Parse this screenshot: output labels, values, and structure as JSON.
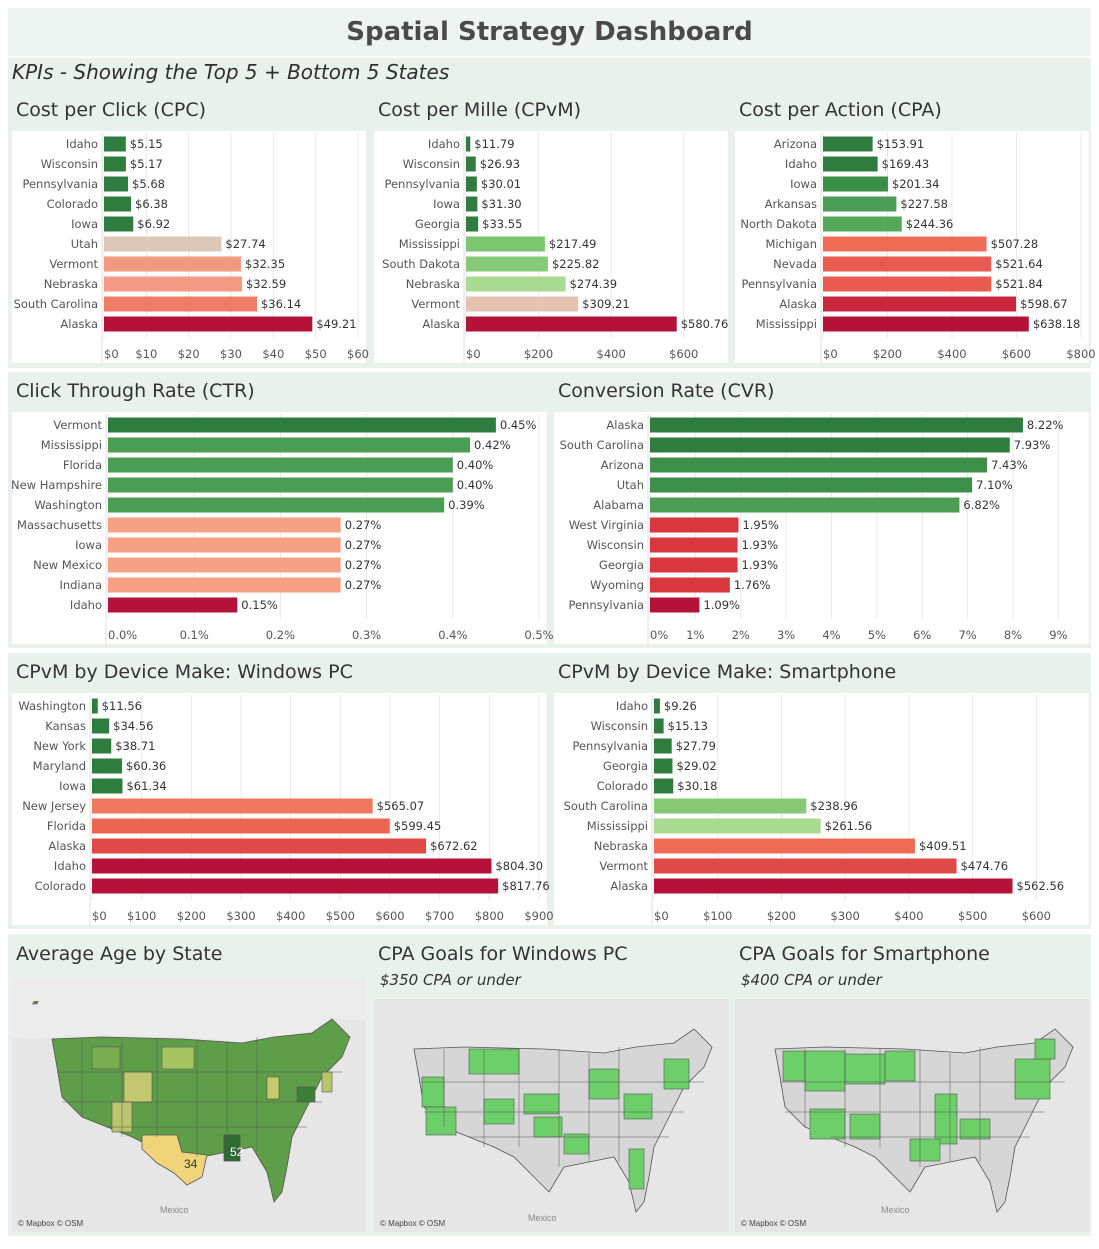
{
  "dashboard": {
    "title": "Spatial Strategy Dashboard",
    "kpi_subtitle": "KPIs - Showing the Top 5 + Bottom 5 States"
  },
  "colors": {
    "dark_green": "#2e7d3f",
    "mid_green": "#4a9d52",
    "light_green": "#7cc66e",
    "pale_green": "#a8da8f",
    "beige": "#e4cbb6",
    "salmon": "#f7a184",
    "coral": "#ee6b56",
    "red": "#d9363e",
    "crimson": "#b5123a",
    "map_green": "#6ccf6a",
    "map_grey": "#d8d8d8"
  },
  "chart_data": [
    {
      "id": "cpc",
      "type": "bar",
      "title": "Cost per Click (CPC)",
      "categories": [
        "Idaho",
        "Wisconsin",
        "Pennsylvania",
        "Colorado",
        "Iowa",
        "Utah",
        "Vermont",
        "Nebraska",
        "South Carolina",
        "Alaska"
      ],
      "values": [
        5.15,
        5.17,
        5.68,
        6.38,
        6.92,
        27.74,
        32.35,
        32.59,
        36.14,
        49.21
      ],
      "labels": [
        "$5.15",
        "$5.17",
        "$5.68",
        "$6.38",
        "$6.92",
        "$27.74",
        "$32.35",
        "$32.59",
        "$36.14",
        "$49.21"
      ],
      "bar_colors": [
        "#2e7d3f",
        "#2e7d3f",
        "#2e7d3f",
        "#2e7d3f",
        "#2e7d3f",
        "#dcc8b6",
        "#f59a82",
        "#f59a82",
        "#ef7c64",
        "#b5123a"
      ],
      "xlim": [
        0,
        60
      ],
      "ticks": [
        0,
        10,
        20,
        30,
        40,
        50,
        60
      ],
      "tick_labels": [
        "$0",
        "$10",
        "$20",
        "$30",
        "$40",
        "$50",
        "$60"
      ]
    },
    {
      "id": "cpvm",
      "type": "bar",
      "title": "Cost per Mille (CPvM)",
      "categories": [
        "Idaho",
        "Wisconsin",
        "Pennsylvania",
        "Iowa",
        "Georgia",
        "Mississippi",
        "South Dakota",
        "Nebraska",
        "Vermont",
        "Alaska"
      ],
      "values": [
        11.79,
        26.93,
        30.01,
        31.3,
        33.55,
        217.49,
        225.82,
        274.39,
        309.21,
        580.76
      ],
      "labels": [
        "$11.79",
        "$26.93",
        "$30.01",
        "$31.30",
        "$33.55",
        "$217.49",
        "$225.82",
        "$274.39",
        "$309.21",
        "$580.76"
      ],
      "bar_colors": [
        "#2e7d3f",
        "#2e7d3f",
        "#2e7d3f",
        "#2e7d3f",
        "#2e7d3f",
        "#7cc66e",
        "#86ca76",
        "#a8da8f",
        "#e6c3b0",
        "#b5123a"
      ],
      "xlim": [
        0,
        700
      ],
      "ticks": [
        0,
        200,
        400,
        600
      ],
      "tick_labels": [
        "$0",
        "$200",
        "$400",
        "$600"
      ]
    },
    {
      "id": "cpa",
      "type": "bar",
      "title": "Cost per Action (CPA)",
      "categories": [
        "Arizona",
        "Idaho",
        "Iowa",
        "Arkansas",
        "North Dakota",
        "Michigan",
        "Nevada",
        "Pennsylvania",
        "Alaska",
        "Mississippi"
      ],
      "values": [
        153.91,
        169.43,
        201.34,
        227.58,
        244.36,
        507.28,
        521.64,
        521.84,
        598.67,
        638.18
      ],
      "labels": [
        "$153.91",
        "$169.43",
        "$201.34",
        "$227.58",
        "$244.36",
        "$507.28",
        "$521.64",
        "$521.84",
        "$598.67",
        "$638.18"
      ],
      "bar_colors": [
        "#2e7d3f",
        "#2e7d3f",
        "#3c8f48",
        "#4a9d52",
        "#55a85a",
        "#ee6b56",
        "#ea5a4e",
        "#ea5a4e",
        "#c8263c",
        "#b5123a"
      ],
      "xlim": [
        0,
        800
      ],
      "ticks": [
        0,
        200,
        400,
        600,
        800
      ],
      "tick_labels": [
        "$0",
        "$200",
        "$400",
        "$600",
        "$800"
      ]
    },
    {
      "id": "ctr",
      "type": "bar",
      "title": "Click Through Rate (CTR)",
      "categories": [
        "Vermont",
        "Mississippi",
        "Florida",
        "New Hampshire",
        "Washington",
        "Massachusetts",
        "Iowa",
        "New Mexico",
        "Indiana",
        "Idaho"
      ],
      "values": [
        0.45,
        0.42,
        0.4,
        0.4,
        0.39,
        0.27,
        0.27,
        0.27,
        0.27,
        0.15
      ],
      "labels": [
        "0.45%",
        "0.42%",
        "0.40%",
        "0.40%",
        "0.39%",
        "0.27%",
        "0.27%",
        "0.27%",
        "0.27%",
        "0.15%"
      ],
      "bar_colors": [
        "#2e7d3f",
        "#4a9d52",
        "#4a9d52",
        "#4a9d52",
        "#4a9d52",
        "#f7a184",
        "#f7a184",
        "#f7a184",
        "#f7a184",
        "#b5123a"
      ],
      "xlim": [
        0,
        0.5
      ],
      "ticks": [
        0,
        0.1,
        0.2,
        0.3,
        0.4,
        0.5
      ],
      "tick_labels": [
        "0.0%",
        "0.1%",
        "0.2%",
        "0.3%",
        "0.4%",
        "0.5%"
      ]
    },
    {
      "id": "cvr",
      "type": "bar",
      "title": "Conversion Rate (CVR)",
      "categories": [
        "Alaska",
        "South Carolina",
        "Arizona",
        "Utah",
        "Alabama",
        "West Virginia",
        "Wisconsin",
        "Georgia",
        "Wyoming",
        "Pennsylvania"
      ],
      "values": [
        8.22,
        7.93,
        7.43,
        7.1,
        6.82,
        1.95,
        1.93,
        1.93,
        1.76,
        1.09
      ],
      "labels": [
        "8.22%",
        "7.93%",
        "7.43%",
        "7.10%",
        "6.82%",
        "1.95%",
        "1.93%",
        "1.93%",
        "1.76%",
        "1.09%"
      ],
      "bar_colors": [
        "#2e7d3f",
        "#2e7d3f",
        "#3c8f48",
        "#3c8f48",
        "#4a9d52",
        "#d9363e",
        "#d9363e",
        "#d9363e",
        "#d9363e",
        "#b5123a"
      ],
      "xlim": [
        0,
        9.5
      ],
      "ticks": [
        0,
        1,
        2,
        3,
        4,
        5,
        6,
        7,
        8,
        9
      ],
      "tick_labels": [
        "0%",
        "1%",
        "2%",
        "3%",
        "4%",
        "5%",
        "6%",
        "7%",
        "8%",
        "9%"
      ]
    },
    {
      "id": "win",
      "type": "bar",
      "title": "CPvM by Device Make: Windows PC",
      "categories": [
        "Washington",
        "Kansas",
        "New York",
        "Maryland",
        "Iowa",
        "New Jersey",
        "Florida",
        "Alaska",
        "Idaho",
        "Colorado"
      ],
      "values": [
        11.56,
        34.56,
        38.71,
        60.36,
        61.34,
        565.07,
        599.45,
        672.62,
        804.3,
        817.76
      ],
      "labels": [
        "$11.56",
        "$34.56",
        "$38.71",
        "$60.36",
        "$61.34",
        "$565.07",
        "$599.45",
        "$672.62",
        "$804.30",
        "$817.76"
      ],
      "bar_colors": [
        "#2e7d3f",
        "#2e7d3f",
        "#2e7d3f",
        "#2e7d3f",
        "#2e7d3f",
        "#f07860",
        "#ec6452",
        "#e04a46",
        "#b5123a",
        "#b5123a"
      ],
      "xlim": [
        0,
        900
      ],
      "ticks": [
        0,
        100,
        200,
        300,
        400,
        500,
        600,
        700,
        800,
        900
      ],
      "tick_labels": [
        "$0",
        "$100",
        "$200",
        "$300",
        "$400",
        "$500",
        "$600",
        "$700",
        "$800",
        "$900"
      ]
    },
    {
      "id": "phone",
      "type": "bar",
      "title": "CPvM by Device Make: Smartphone",
      "categories": [
        "Idaho",
        "Wisconsin",
        "Pennsylvania",
        "Georgia",
        "Colorado",
        "South Carolina",
        "Mississippi",
        "Nebraska",
        "Vermont",
        "Alaska"
      ],
      "values": [
        9.26,
        15.13,
        27.79,
        29.02,
        30.18,
        238.96,
        261.56,
        409.51,
        474.76,
        562.56
      ],
      "labels": [
        "$9.26",
        "$15.13",
        "$27.79",
        "$29.02",
        "$30.18",
        "$238.96",
        "$261.56",
        "$409.51",
        "$474.76",
        "$562.56"
      ],
      "bar_colors": [
        "#2e7d3f",
        "#2e7d3f",
        "#2e7d3f",
        "#2e7d3f",
        "#2e7d3f",
        "#86ca76",
        "#a8da8f",
        "#ee6b56",
        "#e04a46",
        "#b5123a"
      ],
      "xlim": [
        0,
        670
      ],
      "ticks": [
        0,
        100,
        200,
        300,
        400,
        500,
        600
      ],
      "tick_labels": [
        "$0",
        "$100",
        "$200",
        "$300",
        "$400",
        "$500",
        "$600"
      ]
    }
  ],
  "maps": {
    "age": {
      "title": "Average Age by State",
      "attribution": "© Mapbox © OSM",
      "label_mexico": "Mexico",
      "label_min": "34",
      "label_max": "52"
    },
    "win": {
      "title": "CPA Goals for Windows PC",
      "subtitle": "$350 CPA or under",
      "attribution": "© Mapbox © OSM",
      "label_mexico": "Mexico"
    },
    "phone": {
      "title": "CPA Goals for Smartphone",
      "subtitle": "$400 CPA or under",
      "attribution": "© Mapbox © OSM",
      "label_mexico": "Mexico"
    }
  }
}
